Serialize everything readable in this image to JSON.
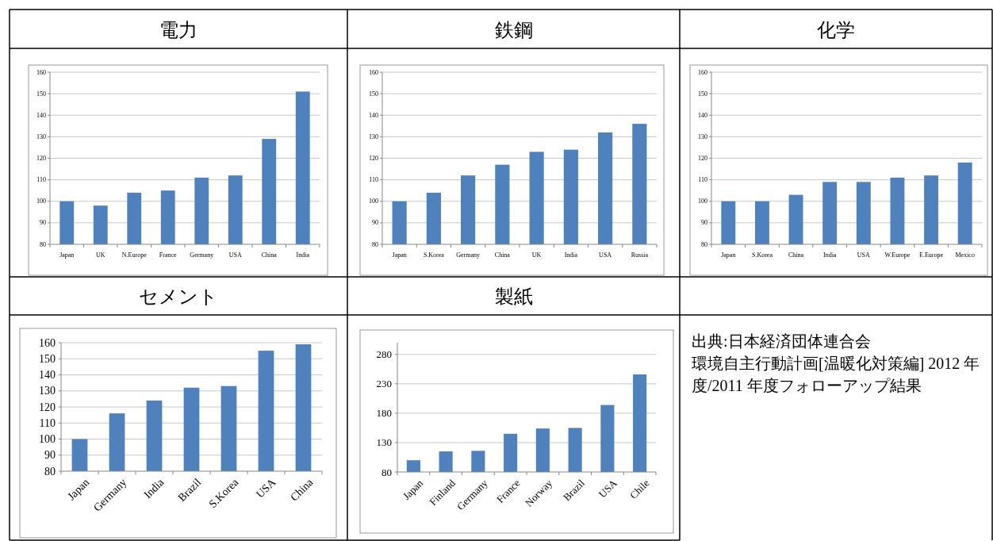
{
  "chart_data": [
    {
      "type": "bar",
      "title": "電力",
      "categories": [
        "Japan",
        "UK",
        "N.Europe",
        "France",
        "Germany",
        "USA",
        "China",
        "India"
      ],
      "values": [
        100,
        98,
        104,
        105,
        111,
        112,
        129,
        151
      ],
      "color": "#4f81bd",
      "ylim": [
        80,
        160
      ],
      "yticks": [
        80,
        90,
        100,
        110,
        120,
        130,
        140,
        150,
        160
      ],
      "grid": "y"
    },
    {
      "type": "bar",
      "title": "鉄鋼",
      "categories": [
        "Japan",
        "S.Korea",
        "Germany",
        "China",
        "UK",
        "India",
        "USA",
        "Russia"
      ],
      "values": [
        100,
        104,
        112,
        117,
        123,
        124,
        132,
        136
      ],
      "color": "#4f81bd",
      "ylim": [
        80,
        160
      ],
      "yticks": [
        80,
        90,
        100,
        110,
        120,
        130,
        140,
        150,
        160
      ],
      "grid": "y"
    },
    {
      "type": "bar",
      "title": "化学",
      "categories": [
        "Japan",
        "S.Korea",
        "China",
        "India",
        "USA",
        "W.Europe",
        "E.Europe",
        "Mexico"
      ],
      "values": [
        100,
        100,
        103,
        109,
        109,
        111,
        112,
        118
      ],
      "color": "#4f81bd",
      "ylim": [
        80,
        160
      ],
      "yticks": [
        80,
        90,
        100,
        110,
        120,
        130,
        140,
        150,
        160
      ],
      "grid": "y"
    },
    {
      "type": "bar",
      "title": "セメント",
      "categories": [
        "Japan",
        "Germany",
        "India",
        "Brazil",
        "S.Korea",
        "USA",
        "China"
      ],
      "values": [
        100,
        116,
        124,
        132,
        133,
        155,
        159
      ],
      "color": "#4f81bd",
      "ylim": [
        80,
        160
      ],
      "yticks": [
        80,
        90,
        100,
        110,
        120,
        130,
        140,
        150,
        160
      ],
      "grid": "y"
    },
    {
      "type": "bar",
      "title": "製紙",
      "categories": [
        "Japan",
        "Finland",
        "Germany",
        "France",
        "Norway",
        "Brazil",
        "USA",
        "Chile"
      ],
      "values": [
        100,
        115,
        116,
        145,
        154,
        155,
        194,
        246
      ],
      "color": "#4f81bd",
      "ylim": [
        80,
        300
      ],
      "yticks": [
        80,
        130,
        180,
        230,
        280
      ],
      "grid": "y"
    },
    {
      "type": "other",
      "annotations": [
        "出典:日本経済団体連合会",
        "環境自主行動計画[温暖化対策編] 2012 年度/2011 年度フォローアップ結果"
      ]
    }
  ]
}
